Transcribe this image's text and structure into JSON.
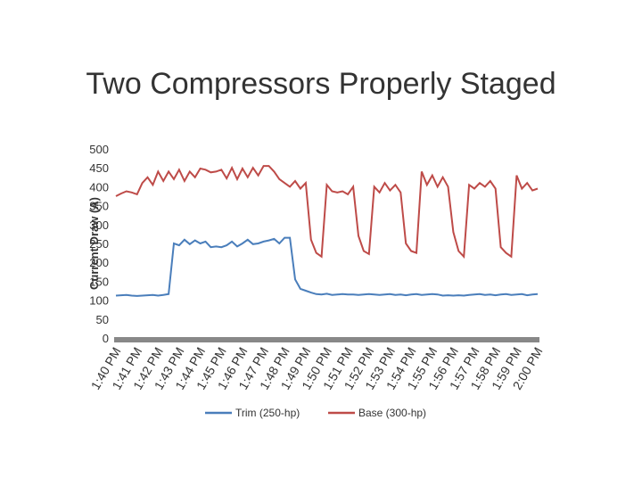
{
  "chart_data": {
    "type": "line",
    "title": "Two Compressors Properly Staged",
    "ylabel": "Current Draw (A)",
    "categories": [
      "1:40 PM",
      null,
      null,
      null,
      "1:41 PM",
      null,
      null,
      null,
      "1:42 PM",
      null,
      null,
      null,
      "1:43 PM",
      null,
      null,
      null,
      "1:44 PM",
      null,
      null,
      null,
      "1:45 PM",
      null,
      null,
      null,
      "1:46 PM",
      null,
      null,
      null,
      "1:47 PM",
      null,
      null,
      null,
      "1:48 PM",
      null,
      null,
      null,
      "1:49 PM",
      null,
      null,
      null,
      "1:50 PM",
      null,
      null,
      null,
      "1:51 PM",
      null,
      null,
      null,
      "1:52 PM",
      null,
      null,
      null,
      "1:53 PM",
      null,
      null,
      null,
      "1:54 PM",
      null,
      null,
      null,
      "1:55 PM",
      null,
      null,
      null,
      "1:56 PM",
      null,
      null,
      null,
      "1:57 PM",
      null,
      null,
      null,
      "1:58 PM",
      null,
      null,
      null,
      "1:59 PM",
      null,
      null,
      null,
      "2:00 PM"
    ],
    "series": [
      {
        "name": "Trim (250-hp)",
        "color": "#4a7ebb",
        "values": [
          112,
          113,
          114,
          112,
          111,
          112,
          113,
          114,
          112,
          114,
          116,
          250,
          245,
          260,
          248,
          258,
          250,
          255,
          240,
          242,
          240,
          245,
          255,
          242,
          250,
          260,
          248,
          250,
          255,
          258,
          262,
          250,
          265,
          265,
          155,
          130,
          125,
          120,
          116,
          115,
          117,
          114,
          115,
          116,
          115,
          115,
          114,
          115,
          116,
          115,
          114,
          115,
          116,
          114,
          115,
          113,
          115,
          116,
          114,
          115,
          116,
          115,
          112,
          113,
          112,
          113,
          112,
          114,
          115,
          116,
          114,
          115,
          113,
          115,
          116,
          114,
          115,
          116,
          113,
          115,
          116
        ]
      },
      {
        "name": "Base (300-hp)",
        "color": "#be4b48",
        "values": [
          375,
          382,
          388,
          385,
          380,
          410,
          425,
          405,
          440,
          415,
          440,
          420,
          445,
          415,
          440,
          425,
          448,
          445,
          438,
          440,
          445,
          422,
          450,
          420,
          448,
          425,
          450,
          430,
          455,
          455,
          440,
          420,
          410,
          400,
          415,
          395,
          410,
          260,
          225,
          215,
          405,
          388,
          385,
          388,
          380,
          400,
          270,
          230,
          222,
          400,
          385,
          410,
          390,
          405,
          385,
          250,
          230,
          225,
          440,
          405,
          430,
          400,
          425,
          400,
          280,
          230,
          215,
          405,
          395,
          410,
          400,
          415,
          395,
          240,
          225,
          215,
          430,
          395,
          410,
          390,
          395
        ]
      }
    ],
    "ylim": [
      0,
      500
    ],
    "yticks": [
      0,
      50,
      100,
      150,
      200,
      250,
      300,
      350,
      400,
      450,
      500
    ],
    "legend": "bottom"
  }
}
